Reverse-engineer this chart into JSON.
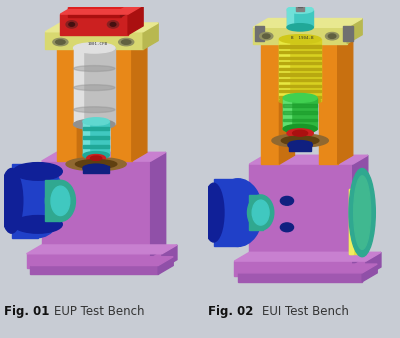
{
  "background_color": "#c8ccd4",
  "panel_bg": "#c5cad2",
  "fig_width": 4.0,
  "fig_height": 3.38,
  "dpi": 100,
  "left_caption_bold": "Fig. 01",
  "left_caption_normal": "EUP Test Bench",
  "right_caption_bold": "Fig. 02",
  "right_caption_normal": "EUI Test Bench",
  "caption_fontsize": 8.5,
  "colors": {
    "purple": "#b868c0",
    "purple_dark": "#9050a8",
    "purple_side": "#a058b0",
    "orange": "#e88818",
    "orange_dark": "#c87010",
    "yellow_green": "#d8d870",
    "yellow_green_dark": "#b8b850",
    "red": "#cc2020",
    "red_dark": "#aa1010",
    "teal": "#40c8c0",
    "teal_dark": "#20a898",
    "blue": "#2040c8",
    "blue_dark": "#102098",
    "silver": "#c0c0c0",
    "silver_dark": "#909090",
    "silver_light": "#e0e0e0",
    "dark_teal": "#30a890",
    "green": "#30b840",
    "green_dark": "#189828",
    "yellow": "#d8d020",
    "yellow_dark": "#b8a810",
    "brown": "#906830",
    "brown_dark": "#604010",
    "navy": "#102080",
    "white": "#f0f0f0",
    "gray": "#808080",
    "dark_gray": "#404040",
    "light_purple": "#c880d0",
    "teal_green": "#40b890"
  }
}
